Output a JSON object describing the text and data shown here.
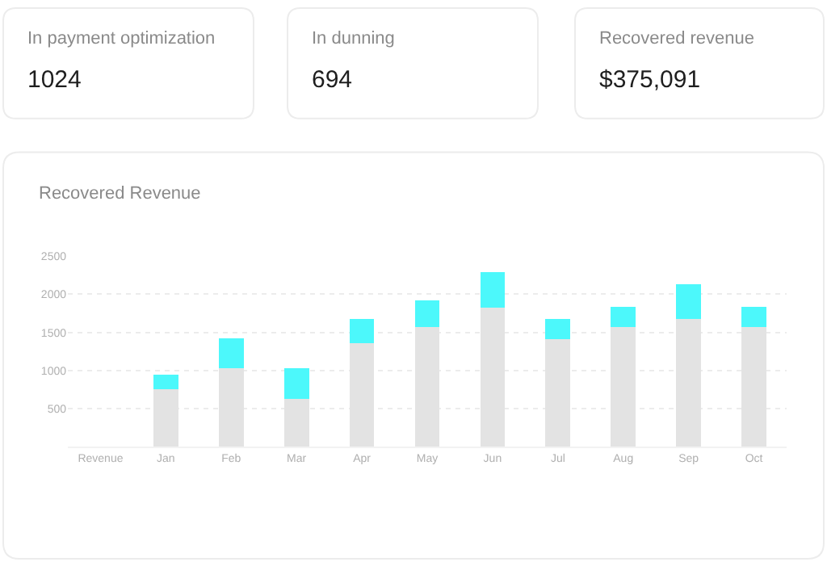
{
  "chart_data": [
    {
      "type": "other",
      "title": "In payment optimization",
      "annotations": [
        "1024"
      ]
    },
    {
      "type": "other",
      "title": "In dunning",
      "annotations": [
        "694"
      ]
    },
    {
      "type": "other",
      "title": "Recovered revenue",
      "annotations": [
        "$375,091"
      ]
    },
    {
      "type": "bar",
      "title": "Recovered Revenue",
      "stacked": true,
      "categories": [
        "Revenue",
        "Jan",
        "Feb",
        "Mar",
        "Apr",
        "May",
        "Jun",
        "Jul",
        "Aug",
        "Sep",
        "Oct"
      ],
      "series": [
        {
          "color": "#e3e3e3",
          "values": [
            null,
            750,
            1030,
            630,
            1360,
            1570,
            1830,
            1410,
            1570,
            1680,
            1570
          ]
        },
        {
          "color": "#4cf8fb",
          "values": [
            null,
            200,
            390,
            400,
            320,
            350,
            460,
            270,
            270,
            450,
            270
          ]
        }
      ],
      "ylim": [
        0,
        2500
      ],
      "yticks": [
        500,
        1000,
        1500,
        2000,
        2500
      ],
      "grid": "y"
    }
  ]
}
